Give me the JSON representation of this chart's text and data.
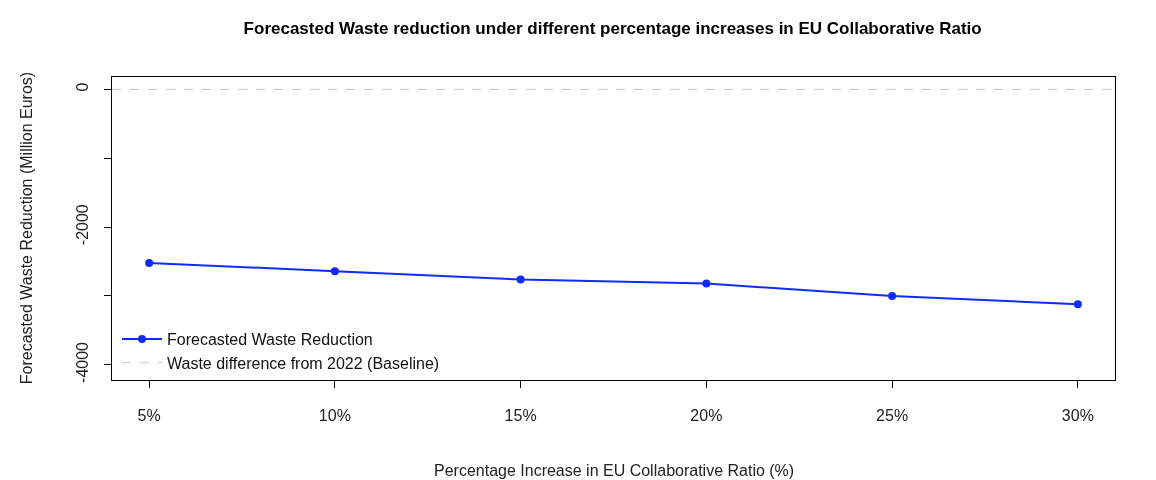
{
  "chart_data": {
    "type": "line",
    "title": "Forecasted Waste reduction under different percentage increases in EU Collaborative Ratio",
    "xlabel": "Percentage Increase in EU Collaborative Ratio (%)",
    "ylabel": "Forecasted Waste Reduction (Million Euros)",
    "x": [
      5,
      10,
      15,
      20,
      25,
      30
    ],
    "series": [
      {
        "name": "Forecasted Waste Reduction",
        "color": "#0f2bff",
        "values": [
          -2520,
          -2640,
          -2760,
          -2820,
          -3000,
          -3120
        ]
      }
    ],
    "ref_lines": [
      {
        "axis": "y",
        "value": 0,
        "label": "Waste difference from 2022 (Baseline)",
        "color": "#c8c8c8",
        "line_style": "dashed"
      }
    ],
    "xlim": [
      4,
      31
    ],
    "xticks": [
      {
        "value": 5,
        "label": "5%"
      },
      {
        "value": 10,
        "label": "10%"
      },
      {
        "value": 15,
        "label": "15%"
      },
      {
        "value": 20,
        "label": "20%"
      },
      {
        "value": 25,
        "label": "25%"
      },
      {
        "value": 30,
        "label": "30%"
      }
    ],
    "ylim": [
      -4220,
      180
    ],
    "yticks": [
      0,
      {
        "value": -1000,
        "label": null
      },
      -2000,
      {
        "value": -3000,
        "label": null
      },
      -4000
    ],
    "grid": false,
    "legend": "bottom left",
    "marker": "circle",
    "line_style": "solid"
  }
}
